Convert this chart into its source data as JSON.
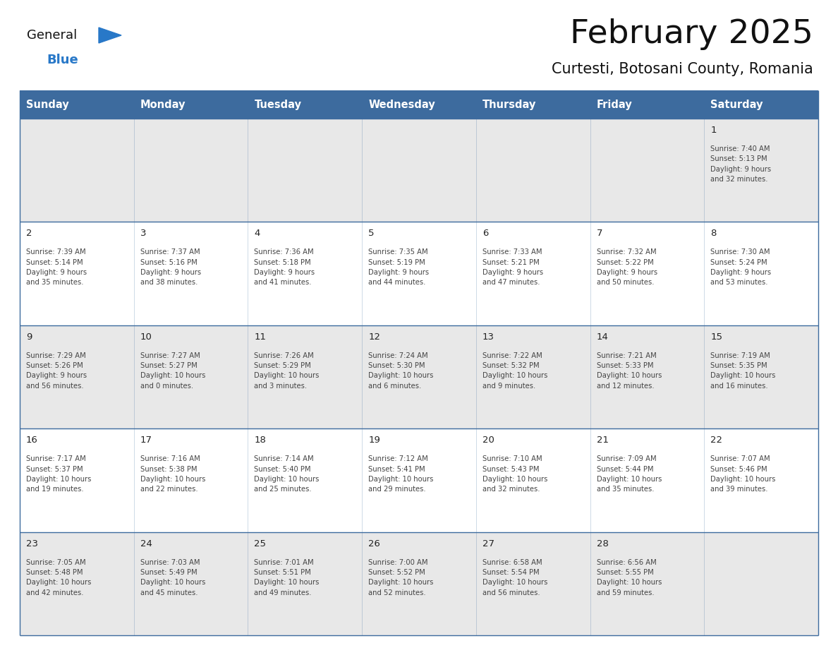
{
  "title": "February 2025",
  "subtitle": "Curtesti, Botosani County, Romania",
  "header_color": "#3D6B9E",
  "header_text_color": "#FFFFFF",
  "header_font_size": 10.5,
  "day_names": [
    "Sunday",
    "Monday",
    "Tuesday",
    "Wednesday",
    "Thursday",
    "Friday",
    "Saturday"
  ],
  "title_font_size": 34,
  "subtitle_font_size": 15,
  "cell_text_color": "#444444",
  "day_number_color": "#222222",
  "row0_color": "#e8e8e8",
  "row1_color": "#ffffff",
  "row2_color": "#e8e8e8",
  "row3_color": "#ffffff",
  "row4_color": "#e8e8e8",
  "line_color": "#3D6B9E",
  "logo_general_color": "#111111",
  "logo_blue_color": "#2878C8",
  "days": [
    {
      "date": 1,
      "col": 6,
      "row": 0,
      "sunrise": "7:40 AM",
      "sunset": "5:13 PM",
      "daylight_h": "9 hours",
      "daylight_m": "32 minutes"
    },
    {
      "date": 2,
      "col": 0,
      "row": 1,
      "sunrise": "7:39 AM",
      "sunset": "5:14 PM",
      "daylight_h": "9 hours",
      "daylight_m": "35 minutes"
    },
    {
      "date": 3,
      "col": 1,
      "row": 1,
      "sunrise": "7:37 AM",
      "sunset": "5:16 PM",
      "daylight_h": "9 hours",
      "daylight_m": "38 minutes"
    },
    {
      "date": 4,
      "col": 2,
      "row": 1,
      "sunrise": "7:36 AM",
      "sunset": "5:18 PM",
      "daylight_h": "9 hours",
      "daylight_m": "41 minutes"
    },
    {
      "date": 5,
      "col": 3,
      "row": 1,
      "sunrise": "7:35 AM",
      "sunset": "5:19 PM",
      "daylight_h": "9 hours",
      "daylight_m": "44 minutes"
    },
    {
      "date": 6,
      "col": 4,
      "row": 1,
      "sunrise": "7:33 AM",
      "sunset": "5:21 PM",
      "daylight_h": "9 hours",
      "daylight_m": "47 minutes"
    },
    {
      "date": 7,
      "col": 5,
      "row": 1,
      "sunrise": "7:32 AM",
      "sunset": "5:22 PM",
      "daylight_h": "9 hours",
      "daylight_m": "50 minutes"
    },
    {
      "date": 8,
      "col": 6,
      "row": 1,
      "sunrise": "7:30 AM",
      "sunset": "5:24 PM",
      "daylight_h": "9 hours",
      "daylight_m": "53 minutes"
    },
    {
      "date": 9,
      "col": 0,
      "row": 2,
      "sunrise": "7:29 AM",
      "sunset": "5:26 PM",
      "daylight_h": "9 hours",
      "daylight_m": "56 minutes"
    },
    {
      "date": 10,
      "col": 1,
      "row": 2,
      "sunrise": "7:27 AM",
      "sunset": "5:27 PM",
      "daylight_h": "10 hours",
      "daylight_m": "0 minutes"
    },
    {
      "date": 11,
      "col": 2,
      "row": 2,
      "sunrise": "7:26 AM",
      "sunset": "5:29 PM",
      "daylight_h": "10 hours",
      "daylight_m": "3 minutes"
    },
    {
      "date": 12,
      "col": 3,
      "row": 2,
      "sunrise": "7:24 AM",
      "sunset": "5:30 PM",
      "daylight_h": "10 hours",
      "daylight_m": "6 minutes"
    },
    {
      "date": 13,
      "col": 4,
      "row": 2,
      "sunrise": "7:22 AM",
      "sunset": "5:32 PM",
      "daylight_h": "10 hours",
      "daylight_m": "9 minutes"
    },
    {
      "date": 14,
      "col": 5,
      "row": 2,
      "sunrise": "7:21 AM",
      "sunset": "5:33 PM",
      "daylight_h": "10 hours",
      "daylight_m": "12 minutes"
    },
    {
      "date": 15,
      "col": 6,
      "row": 2,
      "sunrise": "7:19 AM",
      "sunset": "5:35 PM",
      "daylight_h": "10 hours",
      "daylight_m": "16 minutes"
    },
    {
      "date": 16,
      "col": 0,
      "row": 3,
      "sunrise": "7:17 AM",
      "sunset": "5:37 PM",
      "daylight_h": "10 hours",
      "daylight_m": "19 minutes"
    },
    {
      "date": 17,
      "col": 1,
      "row": 3,
      "sunrise": "7:16 AM",
      "sunset": "5:38 PM",
      "daylight_h": "10 hours",
      "daylight_m": "22 minutes"
    },
    {
      "date": 18,
      "col": 2,
      "row": 3,
      "sunrise": "7:14 AM",
      "sunset": "5:40 PM",
      "daylight_h": "10 hours",
      "daylight_m": "25 minutes"
    },
    {
      "date": 19,
      "col": 3,
      "row": 3,
      "sunrise": "7:12 AM",
      "sunset": "5:41 PM",
      "daylight_h": "10 hours",
      "daylight_m": "29 minutes"
    },
    {
      "date": 20,
      "col": 4,
      "row": 3,
      "sunrise": "7:10 AM",
      "sunset": "5:43 PM",
      "daylight_h": "10 hours",
      "daylight_m": "32 minutes"
    },
    {
      "date": 21,
      "col": 5,
      "row": 3,
      "sunrise": "7:09 AM",
      "sunset": "5:44 PM",
      "daylight_h": "10 hours",
      "daylight_m": "35 minutes"
    },
    {
      "date": 22,
      "col": 6,
      "row": 3,
      "sunrise": "7:07 AM",
      "sunset": "5:46 PM",
      "daylight_h": "10 hours",
      "daylight_m": "39 minutes"
    },
    {
      "date": 23,
      "col": 0,
      "row": 4,
      "sunrise": "7:05 AM",
      "sunset": "5:48 PM",
      "daylight_h": "10 hours",
      "daylight_m": "42 minutes"
    },
    {
      "date": 24,
      "col": 1,
      "row": 4,
      "sunrise": "7:03 AM",
      "sunset": "5:49 PM",
      "daylight_h": "10 hours",
      "daylight_m": "45 minutes"
    },
    {
      "date": 25,
      "col": 2,
      "row": 4,
      "sunrise": "7:01 AM",
      "sunset": "5:51 PM",
      "daylight_h": "10 hours",
      "daylight_m": "49 minutes"
    },
    {
      "date": 26,
      "col": 3,
      "row": 4,
      "sunrise": "7:00 AM",
      "sunset": "5:52 PM",
      "daylight_h": "10 hours",
      "daylight_m": "52 minutes"
    },
    {
      "date": 27,
      "col": 4,
      "row": 4,
      "sunrise": "6:58 AM",
      "sunset": "5:54 PM",
      "daylight_h": "10 hours",
      "daylight_m": "56 minutes"
    },
    {
      "date": 28,
      "col": 5,
      "row": 4,
      "sunrise": "6:56 AM",
      "sunset": "5:55 PM",
      "daylight_h": "10 hours",
      "daylight_m": "59 minutes"
    }
  ]
}
